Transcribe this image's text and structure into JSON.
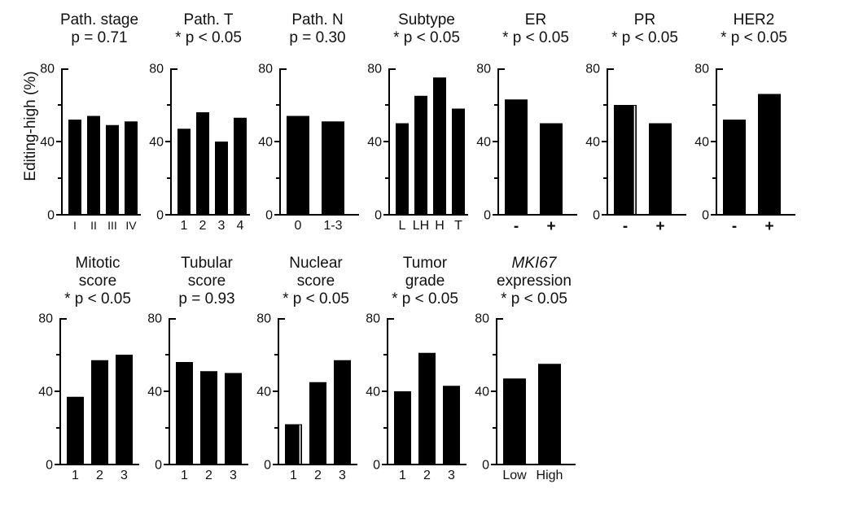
{
  "figure": {
    "ylabel": "Editing-high (%)",
    "background_color": "#ffffff",
    "bar_color": "#000000",
    "axis_color": "#000000",
    "text_color": "#111111"
  },
  "chart_data": [
    {
      "type": "bar",
      "row": 1,
      "title_lines": [
        "Path. stage"
      ],
      "title_italic": [
        false
      ],
      "p_label": "p = 0.71",
      "significant": false,
      "categories": [
        "I",
        "II",
        "III",
        "IV"
      ],
      "values": [
        52,
        54,
        49,
        51
      ],
      "ylim": [
        0,
        80
      ],
      "yticks": [
        0,
        40,
        80
      ],
      "yticks_minor": [
        20,
        60
      ]
    },
    {
      "type": "bar",
      "row": 1,
      "title_lines": [
        "Path. T"
      ],
      "title_italic": [
        false
      ],
      "p_label": "* p < 0.05",
      "significant": true,
      "categories": [
        "1",
        "2",
        "3",
        "4"
      ],
      "values": [
        47,
        56,
        40,
        53
      ],
      "ylim": [
        0,
        80
      ],
      "yticks": [
        0,
        40,
        80
      ],
      "yticks_minor": [
        20,
        60
      ]
    },
    {
      "type": "bar",
      "row": 1,
      "title_lines": [
        "Path. N"
      ],
      "title_italic": [
        false
      ],
      "p_label": "p = 0.30",
      "significant": false,
      "categories": [
        "0",
        "1-3"
      ],
      "values": [
        54,
        51
      ],
      "ylim": [
        0,
        80
      ],
      "yticks": [
        0,
        40,
        80
      ],
      "yticks_minor": [
        20,
        60
      ]
    },
    {
      "type": "bar",
      "row": 1,
      "title_lines": [
        "Subtype"
      ],
      "title_italic": [
        false
      ],
      "p_label": "* p < 0.05",
      "significant": true,
      "categories": [
        "L",
        "LH",
        "H",
        "T"
      ],
      "values": [
        50,
        65,
        75,
        58
      ],
      "ylim": [
        0,
        80
      ],
      "yticks": [
        0,
        40,
        80
      ],
      "yticks_minor": [
        20,
        60
      ]
    },
    {
      "type": "bar",
      "row": 1,
      "title_lines": [
        "ER"
      ],
      "title_italic": [
        false
      ],
      "p_label": "* p < 0.05",
      "significant": true,
      "categories": [
        "-",
        "+"
      ],
      "values": [
        63,
        50
      ],
      "ylim": [
        0,
        80
      ],
      "yticks": [
        0,
        40,
        80
      ],
      "yticks_minor": [
        20,
        60
      ]
    },
    {
      "type": "bar",
      "row": 1,
      "title_lines": [
        "PR"
      ],
      "title_italic": [
        false
      ],
      "p_label": "* p < 0.05",
      "significant": true,
      "categories": [
        "-",
        "+"
      ],
      "values": [
        60,
        50
      ],
      "stripe_bars": [
        0
      ],
      "ylim": [
        0,
        80
      ],
      "yticks": [
        0,
        40,
        80
      ],
      "yticks_minor": [
        20,
        60
      ]
    },
    {
      "type": "bar",
      "row": 1,
      "title_lines": [
        "HER2"
      ],
      "title_italic": [
        false
      ],
      "p_label": "* p < 0.05",
      "significant": true,
      "categories": [
        "-",
        "+"
      ],
      "values": [
        52,
        66
      ],
      "ylim": [
        0,
        80
      ],
      "yticks": [
        0,
        40,
        80
      ],
      "yticks_minor": [
        20,
        60
      ]
    },
    {
      "type": "bar",
      "row": 2,
      "title_lines": [
        "Mitotic",
        "score"
      ],
      "title_italic": [
        false,
        false
      ],
      "p_label": "* p < 0.05",
      "significant": true,
      "categories": [
        "1",
        "2",
        "3"
      ],
      "values": [
        37,
        57,
        60
      ],
      "ylim": [
        0,
        80
      ],
      "yticks": [
        0,
        40,
        80
      ],
      "yticks_minor": [
        20,
        60
      ]
    },
    {
      "type": "bar",
      "row": 2,
      "title_lines": [
        "Tubular",
        "score"
      ],
      "title_italic": [
        false,
        false
      ],
      "p_label": "p = 0.93",
      "significant": false,
      "categories": [
        "1",
        "2",
        "3"
      ],
      "values": [
        56,
        51,
        50
      ],
      "ylim": [
        0,
        80
      ],
      "yticks": [
        0,
        40,
        80
      ],
      "yticks_minor": [
        20,
        60
      ]
    },
    {
      "type": "bar",
      "row": 2,
      "title_lines": [
        "Nuclear",
        "score"
      ],
      "title_italic": [
        false,
        false
      ],
      "p_label": "* p < 0.05",
      "significant": true,
      "categories": [
        "1",
        "2",
        "3"
      ],
      "values": [
        22,
        45,
        57
      ],
      "stripe_bars": [
        0
      ],
      "ylim": [
        0,
        80
      ],
      "yticks": [
        0,
        40,
        80
      ],
      "yticks_minor": [
        20,
        60
      ]
    },
    {
      "type": "bar",
      "row": 2,
      "title_lines": [
        "Tumor",
        "grade"
      ],
      "title_italic": [
        false,
        false
      ],
      "p_label": "* p < 0.05",
      "significant": true,
      "categories": [
        "1",
        "2",
        "3"
      ],
      "values": [
        40,
        61,
        43
      ],
      "ylim": [
        0,
        80
      ],
      "yticks": [
        0,
        40,
        80
      ],
      "yticks_minor": [
        20,
        60
      ]
    },
    {
      "type": "bar",
      "row": 2,
      "title_lines": [
        "MKI67",
        "expression"
      ],
      "title_italic": [
        true,
        false
      ],
      "p_label": "* p < 0.05",
      "significant": true,
      "categories": [
        "Low",
        "High"
      ],
      "values": [
        47,
        55
      ],
      "ylim": [
        0,
        80
      ],
      "yticks": [
        0,
        40,
        80
      ],
      "yticks_minor": [
        20,
        60
      ]
    }
  ]
}
